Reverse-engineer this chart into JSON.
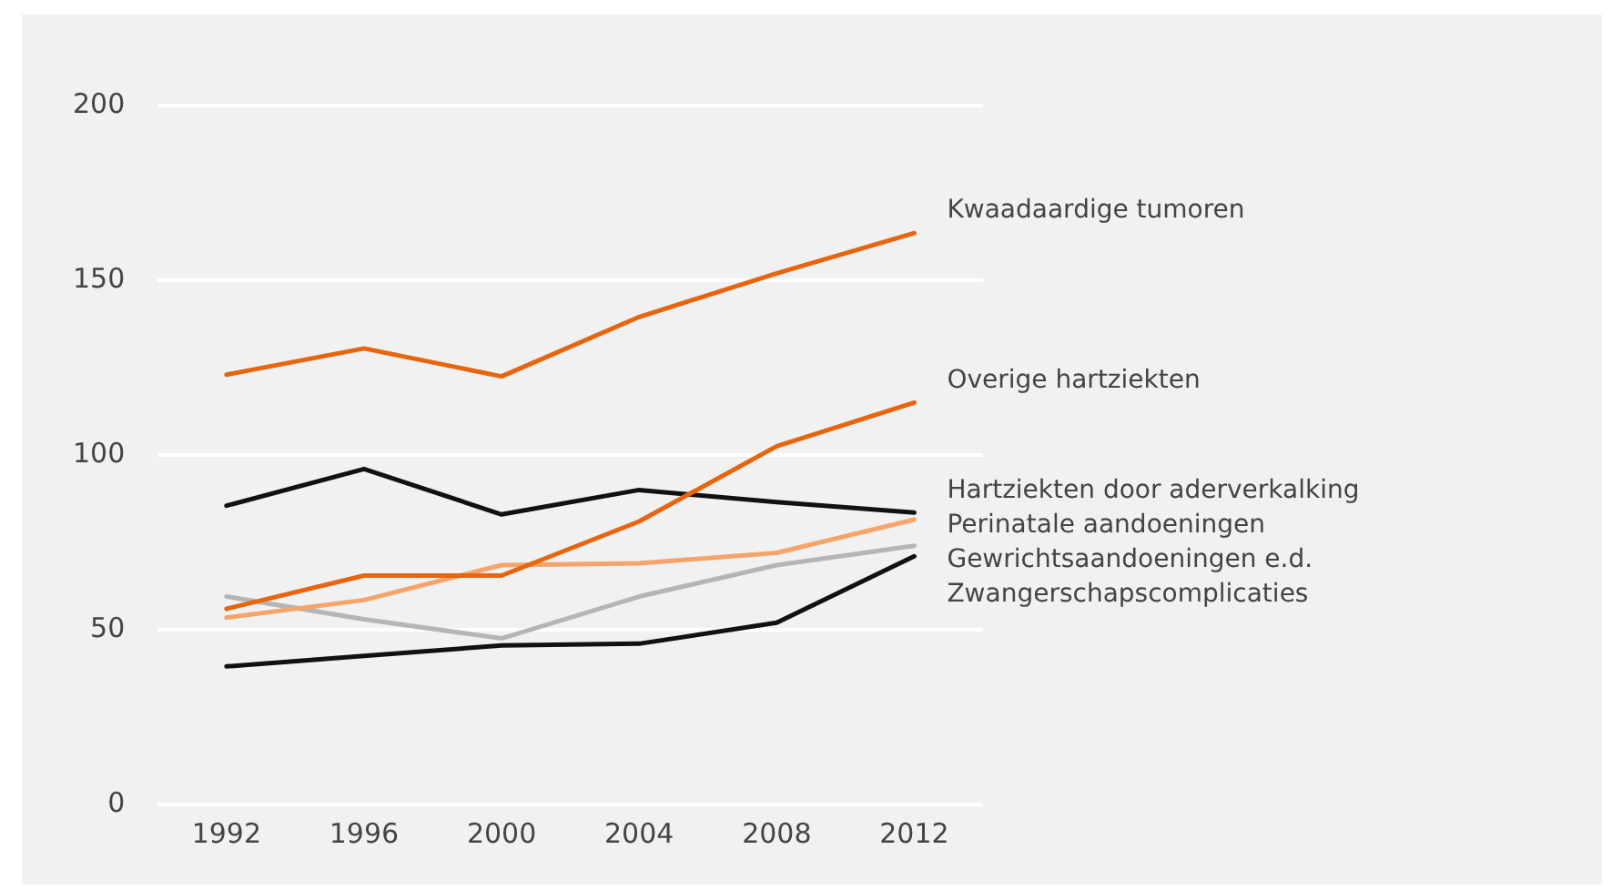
{
  "chart_data": {
    "type": "line",
    "categories": [
      "1992",
      "1996",
      "2000",
      "2004",
      "2008",
      "2012"
    ],
    "ylim": [
      0,
      200
    ],
    "yticks": [
      0,
      50,
      100,
      150,
      200
    ],
    "grid": "y",
    "legend": false,
    "marker": "none",
    "line_style": "solid",
    "series": [
      {
        "name": "Kwaadaardige tumoren",
        "color": "#e8650f",
        "values": [
          123,
          130.5,
          122.5,
          139.5,
          152,
          163.5
        ]
      },
      {
        "name": "Overige hartziekten",
        "color": "#e8650f",
        "values": [
          56,
          65.5,
          65.5,
          81,
          102.5,
          115
        ]
      },
      {
        "name": "Hartziekten door aderverkalking",
        "color": "#111111",
        "values": [
          85.5,
          96,
          83,
          90,
          86.5,
          83.5
        ]
      },
      {
        "name": "Perinatale aandoeningen",
        "color": "#f5a46a",
        "values": [
          53.5,
          58.5,
          68.5,
          69,
          72,
          81.5
        ]
      },
      {
        "name": "Gewrichtsaandoeningen e.d.",
        "color": "#b5b5b5",
        "values": [
          59.5,
          53,
          47.5,
          59.5,
          68.5,
          74
        ]
      },
      {
        "name": "Zwangerschapscomplicaties",
        "color": "#111111",
        "values": [
          39.5,
          42.5,
          45.5,
          46,
          52,
          71
        ]
      }
    ]
  }
}
